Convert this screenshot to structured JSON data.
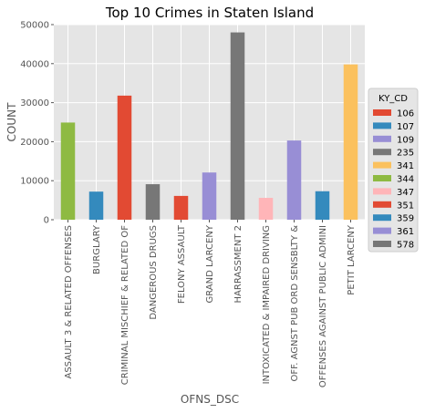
{
  "chart_data": {
    "type": "bar",
    "title": "Top 10 Crimes in Staten Island",
    "xlabel": "OFNS_DSC",
    "ylabel": "COUNT",
    "ylim": [
      0,
      50000
    ],
    "yticks": [
      0,
      10000,
      20000,
      30000,
      40000,
      50000
    ],
    "ytick_labels": [
      "0",
      "10000",
      "20000",
      "30000",
      "40000",
      "50000"
    ],
    "grid": true,
    "categories": [
      "ASSAULT 3 & RELATED OFFENSES",
      "BURGLARY",
      "CRIMINAL MISCHIEF & RELATED OF",
      "DANGEROUS DRUGS",
      "FELONY ASSAULT",
      "GRAND LARCENY",
      "HARRASSMENT 2",
      "INTOXICATED & IMPAIRED DRIVING",
      "OFF. AGNST PUB ORD SENSBLTY &",
      "OFFENSES AGAINST PUBLIC ADMINI",
      "PETIT LARCENY"
    ],
    "values": [
      24900,
      7200,
      31800,
      9100,
      6100,
      12100,
      48000,
      5600,
      20300,
      7300,
      39800
    ],
    "bar_colors": [
      "#8eba42",
      "#348abd",
      "#e24a33",
      "#777777",
      "#e24a33",
      "#988ed5",
      "#777777",
      "#ffb5b8",
      "#988ed5",
      "#348abd",
      "#fbc15e"
    ],
    "legend": {
      "title": "KY_CD",
      "placement": "right",
      "entries": [
        {
          "label": "106",
          "color": "#e24a33"
        },
        {
          "label": "107",
          "color": "#348abd"
        },
        {
          "label": "109",
          "color": "#988ed5"
        },
        {
          "label": "235",
          "color": "#777777"
        },
        {
          "label": "341",
          "color": "#fbc15e"
        },
        {
          "label": "344",
          "color": "#8eba42"
        },
        {
          "label": "347",
          "color": "#ffb5b8"
        },
        {
          "label": "351",
          "color": "#e24a33"
        },
        {
          "label": "359",
          "color": "#348abd"
        },
        {
          "label": "361",
          "color": "#988ed5"
        },
        {
          "label": "578",
          "color": "#777777"
        }
      ]
    },
    "colors": {
      "plot_background": "#e5e5e5",
      "grid": "#ffffff",
      "tick_text": "#555555"
    }
  }
}
